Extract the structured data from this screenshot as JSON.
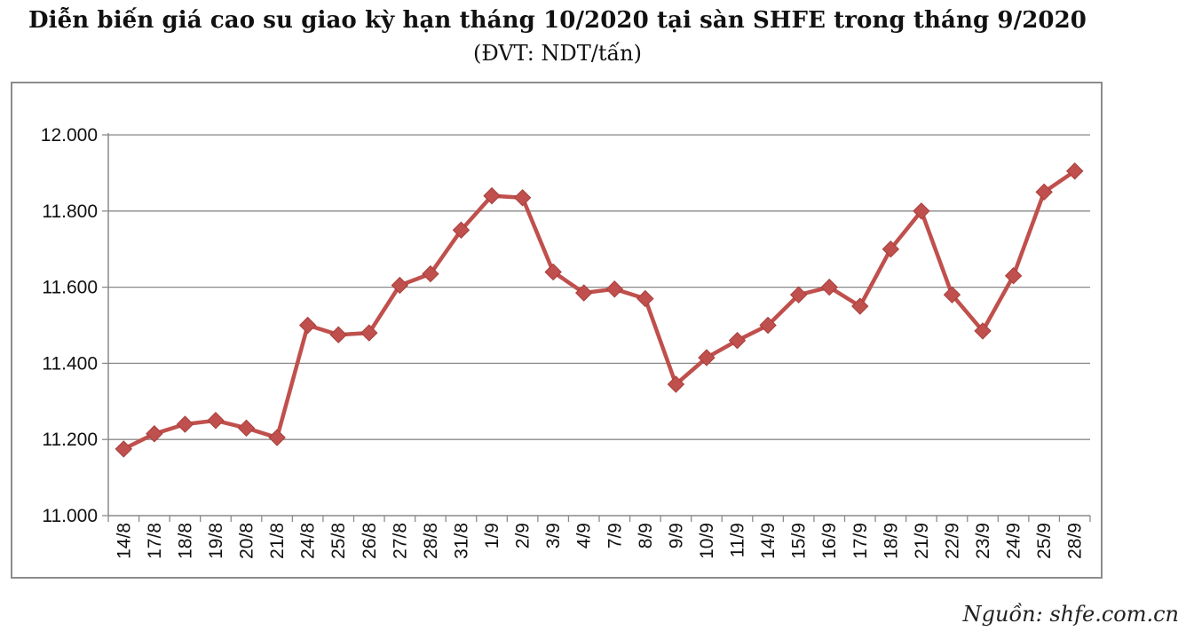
{
  "chart_data": {
    "type": "line",
    "title": "Diễn biến giá cao su giao kỳ hạn tháng 10/2020 tại sàn SHFE trong tháng 9/2020",
    "subtitle": "(ĐVT: NDT/tấn)",
    "xlabel": "",
    "ylabel": "",
    "ylim": [
      11000,
      12000
    ],
    "yticks": [
      11000,
      11200,
      11400,
      11600,
      11800,
      12000
    ],
    "ytick_labels": [
      "11.000",
      "11.200",
      "11.400",
      "11.600",
      "11.800",
      "12.000"
    ],
    "grid": true,
    "legend": "none",
    "line_color": "#c0504d",
    "categories": [
      "14/8",
      "17/8",
      "18/8",
      "19/8",
      "20/8",
      "21/8",
      "24/8",
      "25/8",
      "26/8",
      "27/8",
      "28/8",
      "31/8",
      "1/9",
      "2/9",
      "3/9",
      "4/9",
      "7/9",
      "8/9",
      "9/9",
      "10/9",
      "11/9",
      "14/9",
      "15/9",
      "16/9",
      "17/9",
      "18/9",
      "21/9",
      "22/9",
      "23/9",
      "24/9",
      "25/9",
      "28/9"
    ],
    "values": [
      11175,
      11215,
      11240,
      11250,
      11230,
      11205,
      11500,
      11475,
      11480,
      11605,
      11635,
      11750,
      11840,
      11835,
      11640,
      11585,
      11595,
      11570,
      11345,
      11415,
      11460,
      11500,
      11580,
      11600,
      11550,
      11700,
      11800,
      11580,
      11485,
      11630,
      11850,
      11905
    ]
  },
  "source": "Nguồn: shfe.com.cn"
}
